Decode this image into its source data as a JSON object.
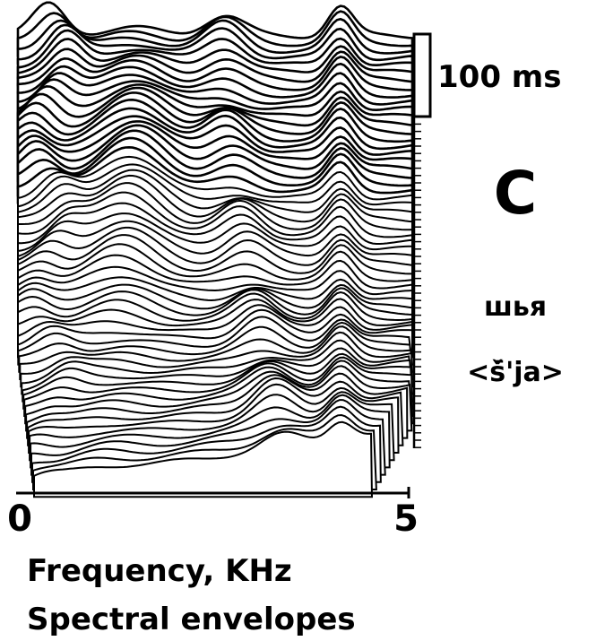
{
  "figure": {
    "x_axis": {
      "ticks": [
        "0",
        "5"
      ],
      "label": "Frequency, KHz"
    },
    "caption": "Spectral envelopes",
    "scale_bar": "100 ms",
    "panel": "C",
    "word": "шья",
    "transcription": "<š̄'ja>"
  }
}
